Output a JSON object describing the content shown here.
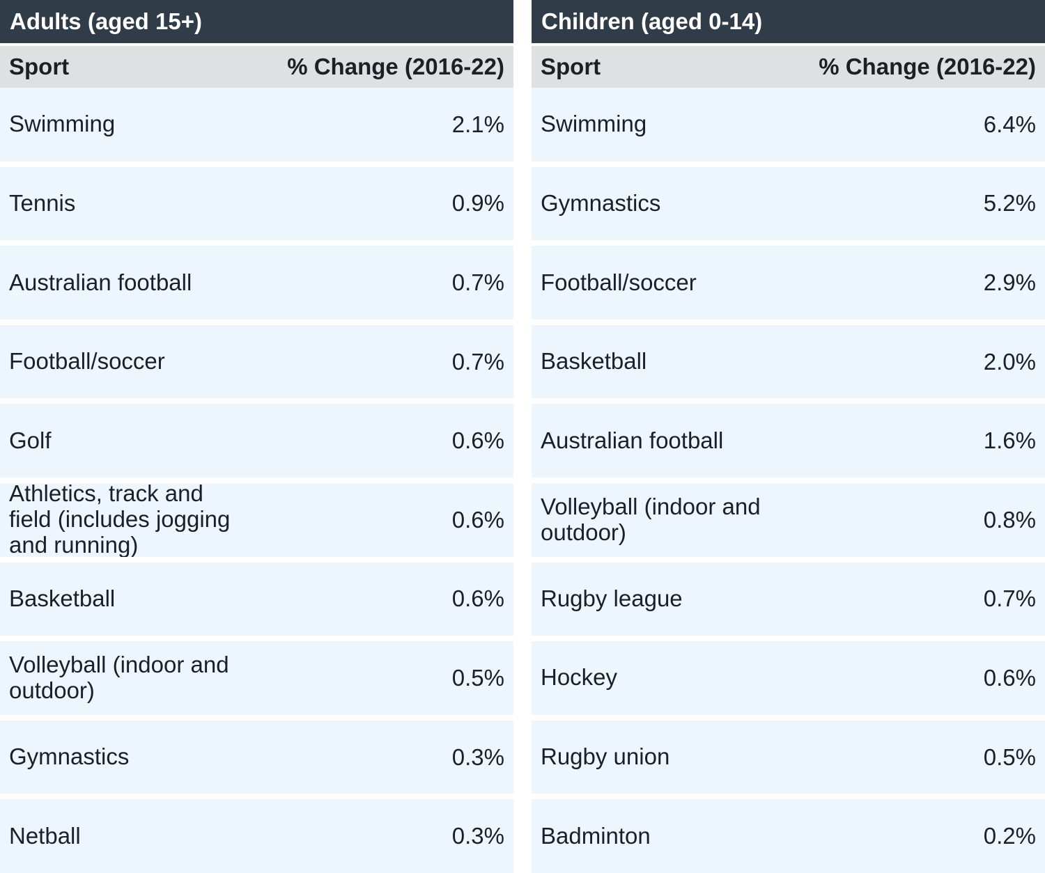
{
  "figure": {
    "colors": {
      "title_bar_bg": "#303d48",
      "title_bar_text": "#ffffff",
      "column_header_bg": "#dfe0e2",
      "row_bg": "#edf5fd",
      "body_text": "#1b2026",
      "gap_color": "#ffffff"
    }
  },
  "chart_data": [
    {
      "type": "table",
      "title": "Adults (aged 15+)",
      "columns": [
        "Sport",
        "% Change (2016-22)"
      ],
      "rows": [
        {
          "sport": "Swimming",
          "change": "2.1%"
        },
        {
          "sport": "Tennis",
          "change": "0.9%"
        },
        {
          "sport": "Australian football",
          "change": "0.7%"
        },
        {
          "sport": "Football/soccer",
          "change": "0.7%"
        },
        {
          "sport": "Golf",
          "change": "0.6%"
        },
        {
          "sport": "Athletics, track and\nfield (includes jogging\nand running)",
          "change": "0.6%"
        },
        {
          "sport": "Basketball",
          "change": "0.6%"
        },
        {
          "sport": "Volleyball (indoor and\noutdoor)",
          "change": "0.5%"
        },
        {
          "sport": "Gymnastics",
          "change": "0.3%"
        },
        {
          "sport": "Netball",
          "change": "0.3%"
        }
      ]
    },
    {
      "type": "table",
      "title": "Children (aged 0-14)",
      "columns": [
        "Sport",
        "% Change (2016-22)"
      ],
      "rows": [
        {
          "sport": "Swimming",
          "change": "6.4%"
        },
        {
          "sport": "Gymnastics",
          "change": "5.2%"
        },
        {
          "sport": "Football/soccer",
          "change": "2.9%"
        },
        {
          "sport": "Basketball",
          "change": "2.0%"
        },
        {
          "sport": "Australian football",
          "change": "1.6%"
        },
        {
          "sport": "Volleyball (indoor and\noutdoor)",
          "change": "0.8%"
        },
        {
          "sport": "Rugby league",
          "change": "0.7%"
        },
        {
          "sport": "Hockey",
          "change": "0.6%"
        },
        {
          "sport": "Rugby union",
          "change": "0.5%"
        },
        {
          "sport": "Badminton",
          "change": "0.2%"
        }
      ]
    }
  ]
}
